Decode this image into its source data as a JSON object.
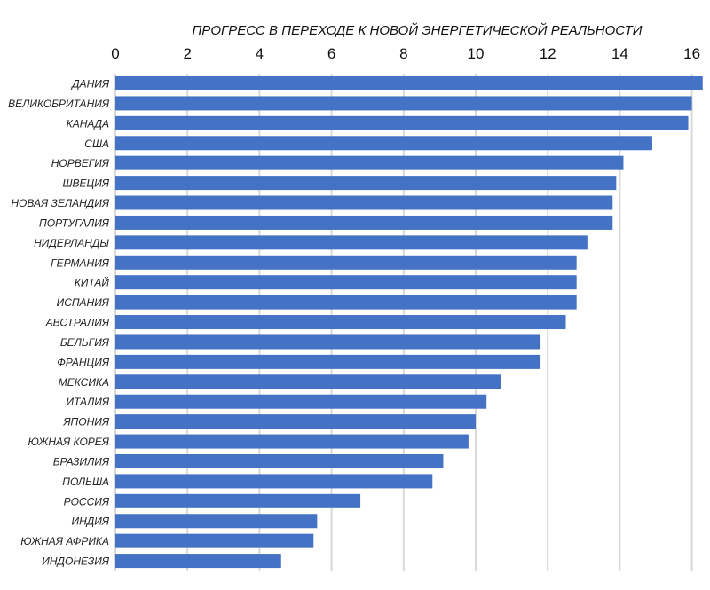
{
  "chart_data": {
    "type": "bar",
    "orientation": "horizontal",
    "title": "ПРОГРЕСС В ПЕРЕХОДЕ К НОВОЙ ЭНЕРГЕТИЧЕСКОЙ РЕАЛЬНОСТИ",
    "xlabel": "",
    "ylabel": "",
    "xlim": [
      0,
      16
    ],
    "x_ticks": [
      "0",
      "2",
      "4",
      "6",
      "8",
      "10",
      "12",
      "14",
      "16"
    ],
    "x_axis_position": "top",
    "grid": true,
    "bar_color": "#4472C4",
    "categories": [
      "ДАНИЯ",
      "ВЕЛИКОБРИТАНИЯ",
      "КАНАДА",
      "США",
      "НОРВЕГИЯ",
      "ШВЕЦИЯ",
      "НОВАЯ ЗЕЛАНДИЯ",
      "ПОРТУГАЛИЯ",
      "НИДЕРЛАНДЫ",
      "ГЕРМАНИЯ",
      "КИТАЙ",
      "ИСПАНИЯ",
      "АВСТРАЛИЯ",
      "БЕЛЬГИЯ",
      "ФРАНЦИЯ",
      "МЕКСИКА",
      "ИТАЛИЯ",
      "ЯПОНИЯ",
      "ЮЖНАЯ КОРЕЯ",
      "БРАЗИЛИЯ",
      "ПОЛЬША",
      "РОССИЯ",
      "ИНДИЯ",
      "ЮЖНАЯ АФРИКА",
      "ИНДОНЕЗИЯ"
    ],
    "values": [
      16.3,
      16.0,
      15.9,
      14.9,
      14.1,
      13.9,
      13.8,
      13.8,
      13.1,
      12.8,
      12.8,
      12.8,
      12.5,
      11.8,
      11.8,
      10.7,
      10.3,
      10.0,
      9.8,
      9.1,
      8.8,
      6.8,
      5.6,
      5.5,
      4.6
    ]
  }
}
